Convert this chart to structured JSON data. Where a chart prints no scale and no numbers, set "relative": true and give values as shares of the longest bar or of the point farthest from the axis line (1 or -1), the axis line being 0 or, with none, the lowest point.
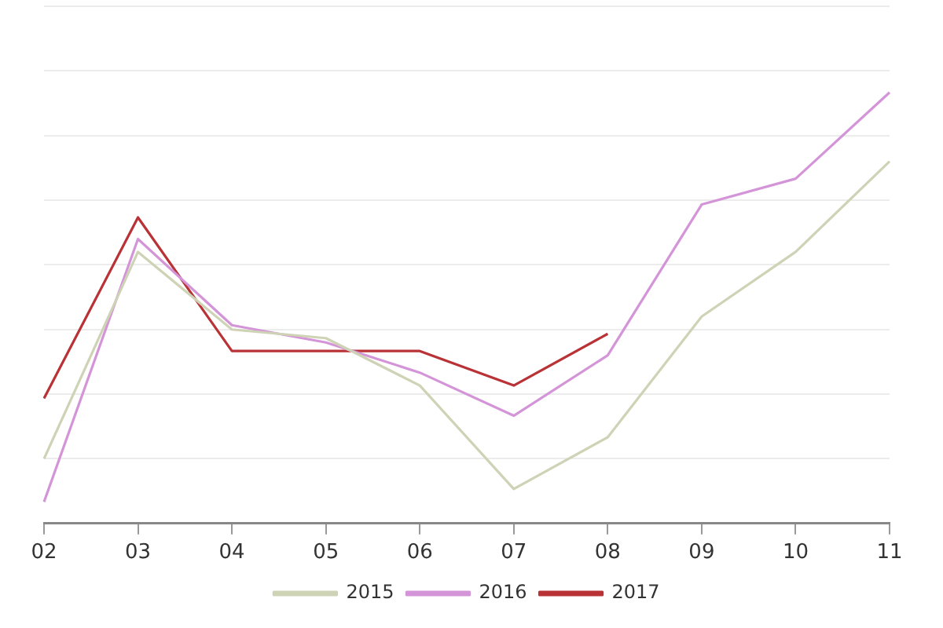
{
  "chart_data": {
    "type": "line",
    "relative": true,
    "categories": [
      "02",
      "03",
      "04",
      "05",
      "06",
      "07",
      "08",
      "09",
      "10",
      "11"
    ],
    "series": [
      {
        "name": "2015",
        "color": "#cfd3b6",
        "values": [
          0.15,
          0.63,
          0.45,
          0.43,
          0.32,
          0.08,
          0.2,
          0.48,
          0.63,
          0.84
        ]
      },
      {
        "name": "2016",
        "color": "#d495d8",
        "values": [
          0.05,
          0.66,
          0.46,
          0.42,
          0.35,
          0.25,
          0.39,
          0.74,
          0.8,
          1
        ]
      },
      {
        "name": "2017",
        "color": "#b83236",
        "values": [
          0.29,
          0.71,
          0.4,
          0.4,
          0.4,
          0.32,
          0.44,
          null,
          null,
          null
        ]
      }
    ],
    "legend": "bottom",
    "grid": "y",
    "marker": "none",
    "line_style": "solid"
  }
}
